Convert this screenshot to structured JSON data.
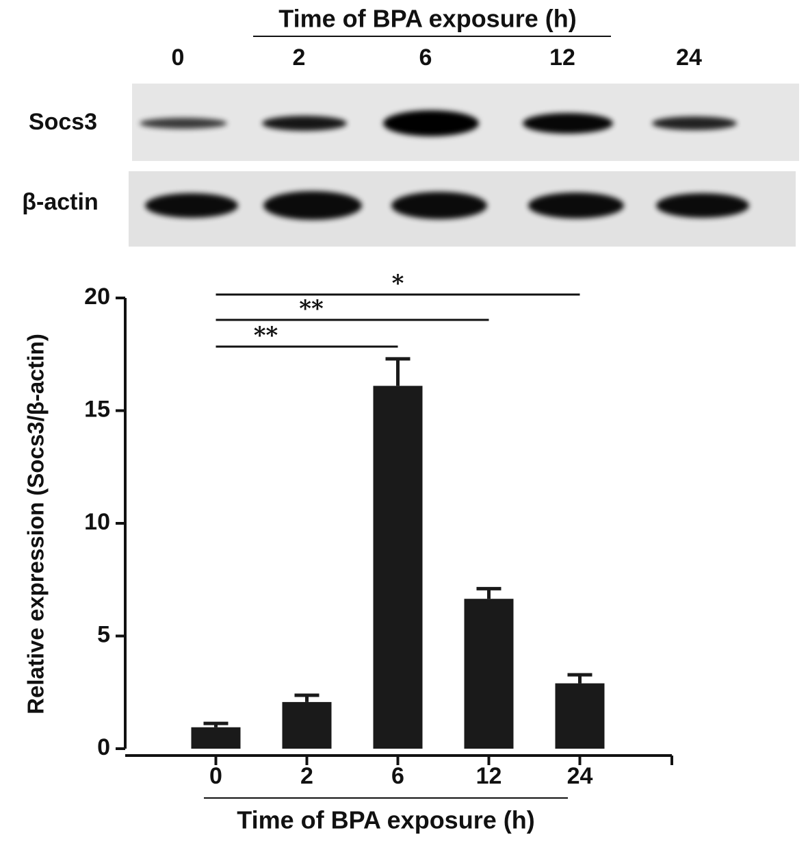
{
  "blot": {
    "title": "Time of BPA exposure (h)",
    "lanes": [
      "0",
      "2",
      "6",
      "12",
      "24"
    ],
    "rows": [
      "Socs3",
      "β-actin"
    ]
  },
  "chart_data": {
    "type": "bar",
    "ylabel": "Relative expression (Socs3/β-actin)",
    "xlabel": "Time of BPA exposure (h)",
    "categories": [
      "0",
      "2",
      "6",
      "12",
      "24"
    ],
    "values": [
      0.95,
      2.07,
      16.1,
      6.65,
      2.9
    ],
    "errors": [
      0.17,
      0.3,
      1.2,
      0.45,
      0.38
    ],
    "color": "#1a1a1a",
    "ylim": [
      0,
      20
    ],
    "yticks": [
      0,
      5,
      10,
      15,
      20
    ],
    "grid": false,
    "significance": [
      {
        "label": "*",
        "from": "0",
        "to": "24"
      },
      {
        "label": "**",
        "from": "0",
        "to": "12"
      },
      {
        "label": "**",
        "from": "0",
        "to": "6"
      }
    ]
  }
}
